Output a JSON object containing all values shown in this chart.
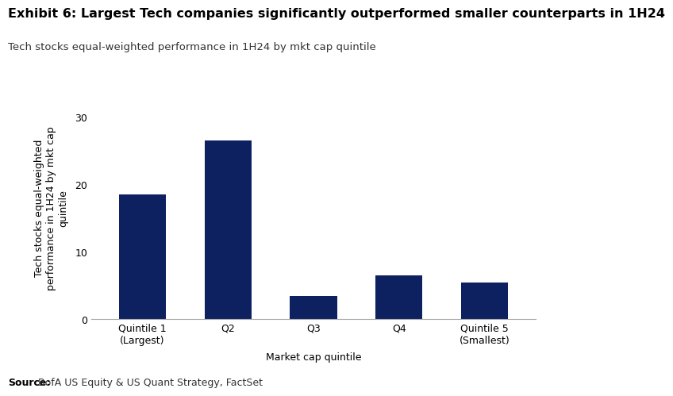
{
  "title": "Exhibit 6: Largest Tech companies significantly outperformed smaller counterparts in 1H24",
  "subtitle": "Tech stocks equal-weighted performance in 1H24 by mkt cap quintile",
  "categories": [
    "Quintile 1\n(Largest)",
    "Q2",
    "Q3",
    "Q4",
    "Quintile 5\n(Smallest)"
  ],
  "values": [
    18.5,
    26.5,
    3.5,
    6.5,
    5.5
  ],
  "bar_color": "#0D2060",
  "xlabel": "Market cap quintile",
  "ylabel": "Tech stocks equal-weighted\nperformance in 1H24 by mkt cap\nquintile",
  "ylim": [
    0,
    33
  ],
  "yticks": [
    0,
    10,
    20,
    30
  ],
  "source_bold": "Source:",
  "source_rest": " BofA US Equity & US Quant Strategy, FactSet",
  "background_color": "#ffffff",
  "title_fontsize": 11.5,
  "subtitle_fontsize": 9.5,
  "axis_label_fontsize": 9,
  "tick_fontsize": 9,
  "source_fontsize": 9
}
